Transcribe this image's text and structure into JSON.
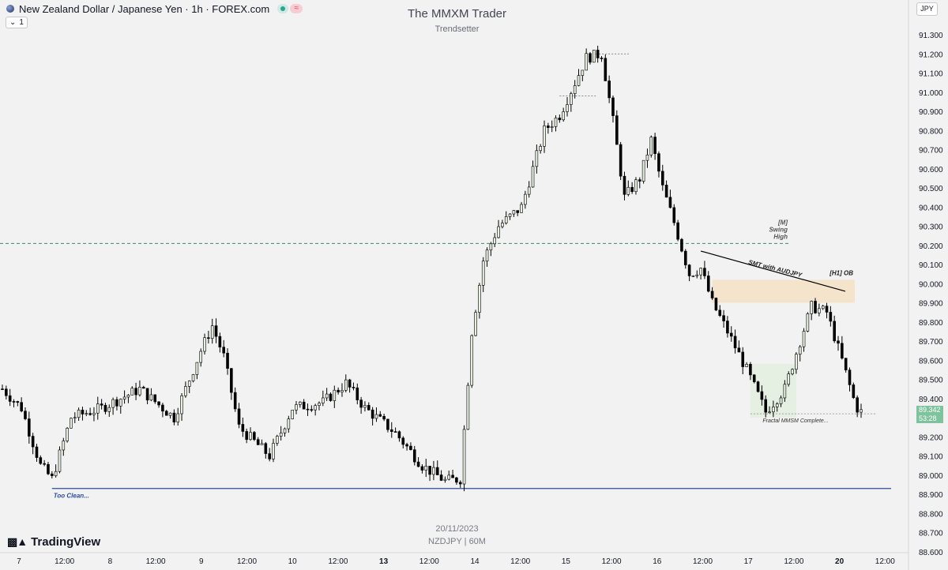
{
  "header": {
    "symbol_title": "New Zealand Dollar / Japanese Yen · 1h · FOREX.com",
    "interval_label": "1",
    "wave_badge": "≈"
  },
  "watermark": {
    "title": "The MMXM Trader",
    "subtitle": "Trendsetter",
    "date": "20/11/2023",
    "symbol_line": "NZDJPY | 60M"
  },
  "branding": {
    "logo_text": "TradingView"
  },
  "currency_button": "JPY",
  "last_price": {
    "price": "89.342",
    "countdown": "53:28"
  },
  "colors": {
    "background": "#f2f2f2",
    "bull_body": "#e6efe0",
    "bear_body": "#000000",
    "wick": "#000000",
    "swing_line": "#3d8c6b",
    "low_line": "#2c4a9c",
    "ob_zone": "#f5e4cc",
    "fractal_zone": "#e3eedf",
    "price_label": "#7fc29e"
  },
  "chart_data": {
    "type": "candlestick",
    "symbol": "NZDJPY",
    "timeframe": "1h",
    "y_axis": {
      "range": [
        88.57,
        91.43
      ],
      "tick_labels": [
        "91.300",
        "91.200",
        "91.100",
        "91.000",
        "90.900",
        "90.800",
        "90.700",
        "90.600",
        "90.500",
        "90.400",
        "90.300",
        "90.200",
        "90.100",
        "90.000",
        "89.900",
        "89.800",
        "89.700",
        "89.600",
        "89.500",
        "89.400",
        "89.300",
        "89.200",
        "89.100",
        "89.000",
        "88.900",
        "88.800",
        "88.700",
        "88.600"
      ]
    },
    "x_axis": {
      "tick_labels": [
        "7",
        "12:00",
        "8",
        "12:00",
        "9",
        "12:00",
        "10",
        "12:00",
        "13",
        "12:00",
        "14",
        "12:00",
        "15",
        "12:00",
        "16",
        "12:00",
        "17",
        "12:00",
        "20",
        "12:00"
      ],
      "bold_labels": [
        "13",
        "20"
      ]
    },
    "anchors": [
      {
        "bar": 0,
        "price": 89.45
      },
      {
        "bar": 5,
        "price": 89.35
      },
      {
        "bar": 10,
        "price": 89.05
      },
      {
        "bar": 13,
        "price": 88.98
      },
      {
        "bar": 18,
        "price": 89.3
      },
      {
        "bar": 26,
        "price": 89.35
      },
      {
        "bar": 36,
        "price": 89.45
      },
      {
        "bar": 45,
        "price": 89.3
      },
      {
        "bar": 52,
        "price": 89.65
      },
      {
        "bar": 55,
        "price": 89.78
      },
      {
        "bar": 58,
        "price": 89.62
      },
      {
        "bar": 62,
        "price": 89.25
      },
      {
        "bar": 70,
        "price": 89.1
      },
      {
        "bar": 76,
        "price": 89.35
      },
      {
        "bar": 84,
        "price": 89.38
      },
      {
        "bar": 90,
        "price": 89.48
      },
      {
        "bar": 95,
        "price": 89.35
      },
      {
        "bar": 103,
        "price": 89.22
      },
      {
        "bar": 110,
        "price": 89.05
      },
      {
        "bar": 116,
        "price": 88.97
      },
      {
        "bar": 120,
        "price": 88.98
      },
      {
        "bar": 123,
        "price": 89.75
      },
      {
        "bar": 126,
        "price": 90.12
      },
      {
        "bar": 130,
        "price": 90.3
      },
      {
        "bar": 136,
        "price": 90.4
      },
      {
        "bar": 142,
        "price": 90.8
      },
      {
        "bar": 146,
        "price": 90.88
      },
      {
        "bar": 150,
        "price": 91.05
      },
      {
        "bar": 153,
        "price": 91.18
      },
      {
        "bar": 157,
        "price": 91.2
      },
      {
        "bar": 160,
        "price": 90.85
      },
      {
        "bar": 163,
        "price": 90.45
      },
      {
        "bar": 167,
        "price": 90.55
      },
      {
        "bar": 170,
        "price": 90.75
      },
      {
        "bar": 173,
        "price": 90.5
      },
      {
        "bar": 176,
        "price": 90.32
      },
      {
        "bar": 180,
        "price": 90.05
      },
      {
        "bar": 183,
        "price": 90.08
      },
      {
        "bar": 186,
        "price": 89.9
      },
      {
        "bar": 190,
        "price": 89.75
      },
      {
        "bar": 195,
        "price": 89.55
      },
      {
        "bar": 200,
        "price": 89.33
      },
      {
        "bar": 205,
        "price": 89.45
      },
      {
        "bar": 209,
        "price": 89.7
      },
      {
        "bar": 212,
        "price": 89.88
      },
      {
        "bar": 216,
        "price": 89.85
      },
      {
        "bar": 220,
        "price": 89.6
      },
      {
        "bar": 223,
        "price": 89.4
      },
      {
        "bar": 225,
        "price": 89.3
      }
    ],
    "last_price": 89.342,
    "annotations": [
      {
        "text_lines": [
          "[M]",
          "Swing",
          "High"
        ],
        "price": 90.21,
        "style": "dashed"
      },
      {
        "text": "SMT with AUDJPY"
      },
      {
        "text": "[H1] OB",
        "zone": [
          89.9,
          90.02
        ]
      },
      {
        "text": "Fractal MMSM Complete...",
        "price": 89.32
      },
      {
        "text": "Too Clean...",
        "price": 88.93
      }
    ]
  }
}
